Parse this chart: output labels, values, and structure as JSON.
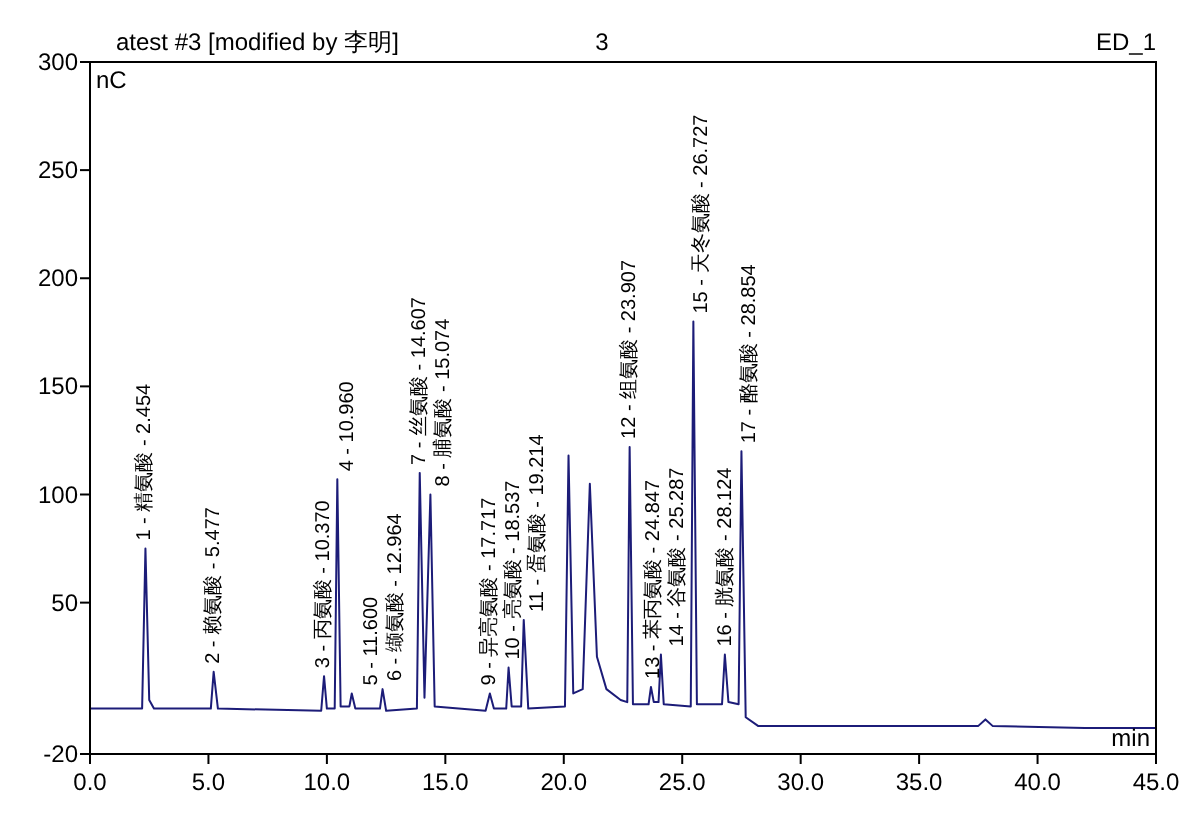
{
  "chart_data": {
    "type": "line",
    "title": "atest #3 [modified by 李明]",
    "subtitle": "3",
    "xlabel": "min",
    "ylabel": "nC",
    "x": [
      0,
      2.2,
      2.34,
      2.5,
      2.7,
      5.1,
      5.22,
      5.4,
      9.76,
      9.88,
      10.0,
      10.33,
      10.44,
      10.58,
      10.95,
      11.05,
      11.2,
      12.24,
      12.35,
      12.5,
      13.8,
      13.92,
      14.12,
      14.37,
      14.55,
      16.7,
      16.88,
      17.05,
      17.57,
      17.67,
      17.8,
      18.2,
      18.31,
      18.5,
      20.05,
      20.2,
      20.4,
      20.8,
      21.1,
      21.4,
      21.8,
      22.4,
      22.68,
      22.78,
      22.92,
      23.58,
      23.68,
      23.8,
      24.0,
      24.1,
      24.22,
      25.36,
      25.47,
      25.62,
      26.68,
      26.8,
      26.95,
      27.38,
      27.5,
      27.68,
      28.2,
      37.5,
      37.8,
      38.1,
      42,
      45
    ],
    "series": [
      {
        "color": "#1c1c78",
        "values": [
          1,
          1,
          75,
          5,
          1,
          1,
          18,
          1,
          0,
          16,
          1,
          1,
          107,
          2,
          2,
          8,
          1,
          1,
          10,
          0,
          1,
          110,
          6,
          100,
          2,
          0,
          8,
          1,
          1,
          20,
          2,
          2,
          42,
          1,
          2,
          118,
          8,
          10,
          105,
          25,
          10,
          5,
          4,
          122,
          3,
          3,
          11,
          4,
          4,
          26,
          3,
          2,
          180,
          3,
          3,
          26,
          4,
          3,
          120,
          -3,
          -7,
          -7,
          -4,
          -7,
          -8,
          -8
        ]
      }
    ],
    "xlim": [
      0,
      45
    ],
    "ylim": [
      -20,
      300
    ],
    "xticks": [
      {
        "value": 0,
        "label": "0.0"
      },
      {
        "value": 5,
        "label": "5.0"
      },
      {
        "value": 10,
        "label": "10.0"
      },
      {
        "value": 15,
        "label": "15.0"
      },
      {
        "value": 20,
        "label": "20.0"
      },
      {
        "value": 25,
        "label": "25.0"
      },
      {
        "value": 30,
        "label": "30.0"
      },
      {
        "value": 35,
        "label": "35.0"
      },
      {
        "value": 40,
        "label": "40.0"
      },
      {
        "value": 45,
        "label": "45.0"
      }
    ],
    "yticks": [
      -20,
      50,
      100,
      150,
      200,
      250,
      300
    ],
    "grid": false,
    "annotations": [
      "ED_1",
      {
        "text": "1 - 精氨酸 - 2.454",
        "x": 2.34,
        "y": 75
      },
      {
        "text": "2 - 赖氨酸 - 5.477",
        "x": 5.22,
        "y": 18
      },
      {
        "text": "3 - 丙氨酸 - 10.370",
        "x": 9.88,
        "y": 16
      },
      {
        "text": "4 - 10.960",
        "x": 10.44,
        "y": 107
      },
      {
        "text": "5 - 11.600",
        "x": 11.05,
        "y": 8
      },
      {
        "text": "6 - 缬氨酸 - 12.964",
        "x": 12.35,
        "y": 10
      },
      {
        "text": "7 - 丝氨酸 - 14.607",
        "x": 13.92,
        "y": 110
      },
      {
        "text": "8 - 脯氨酸 - 15.074",
        "x": 14.37,
        "y": 100
      },
      {
        "text": "9 - 异亮氨酸 - 17.717",
        "x": 16.88,
        "y": 8
      },
      {
        "text": "10 - 亮氨酸 - 18.537",
        "x": 17.67,
        "y": 20
      },
      {
        "text": "11 - 蛋氨酸 - 19.214",
        "x": 18.31,
        "y": 42
      },
      {
        "text": "12 - 组氨酸 - 23.907",
        "x": 22.78,
        "y": 122
      },
      {
        "text": "13 - 苯丙氨酸 - 24.847",
        "x": 23.68,
        "y": 11
      },
      {
        "text": "14 - 谷氨酸 - 25.287",
        "x": 24.1,
        "y": 26
      },
      {
        "text": "15 - 天冬氨酸 - 26.727",
        "x": 25.47,
        "y": 180
      },
      {
        "text": "16 - 胱氨酸 - 28.124",
        "x": 26.8,
        "y": 26
      },
      {
        "text": "17 - 酪氨酸 - 28.854",
        "x": 27.5,
        "y": 120
      }
    ]
  }
}
